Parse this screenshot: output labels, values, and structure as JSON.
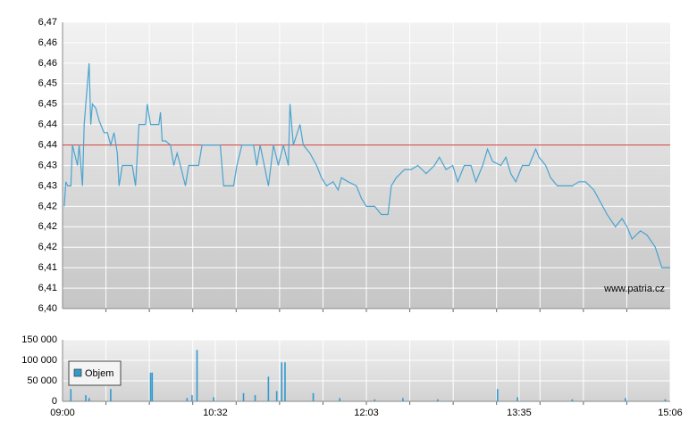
{
  "chart_data": [
    {
      "type": "line",
      "annotation": "www.patria.cz",
      "xlim": [
        "09:00",
        "15:06"
      ],
      "ylim": [
        6.4,
        6.47
      ],
      "yticks": [
        {
          "value": 6.4,
          "label": "6,40"
        },
        {
          "value": 6.405,
          "label": "6,41"
        },
        {
          "value": 6.41,
          "label": "6,41"
        },
        {
          "value": 6.415,
          "label": "6,42"
        },
        {
          "value": 6.42,
          "label": "6,42"
        },
        {
          "value": 6.425,
          "label": "6,42"
        },
        {
          "value": 6.43,
          "label": "6,43"
        },
        {
          "value": 6.435,
          "label": "6,43"
        },
        {
          "value": 6.44,
          "label": "6,44"
        },
        {
          "value": 6.445,
          "label": "6,44"
        },
        {
          "value": 6.45,
          "label": "6,45"
        },
        {
          "value": 6.455,
          "label": "6,45"
        },
        {
          "value": 6.46,
          "label": "6,46"
        },
        {
          "value": 6.465,
          "label": "6,46"
        },
        {
          "value": 6.47,
          "label": "6,47"
        }
      ],
      "grid": true,
      "hline": {
        "value": 6.44,
        "color": "#d03a3a"
      },
      "color": "#4aa3d0",
      "x": [
        "09:01",
        "09:02",
        "09:03",
        "09:05",
        "09:06",
        "09:09",
        "09:10",
        "09:12",
        "09:13",
        "09:16",
        "09:17",
        "09:18",
        "09:20",
        "09:22",
        "09:23",
        "09:25",
        "09:27",
        "09:29",
        "09:31",
        "09:33",
        "09:34",
        "09:36",
        "09:38",
        "09:42",
        "09:44",
        "09:46",
        "09:50",
        "09:51",
        "09:53",
        "09:58",
        "09:59",
        "10:00",
        "10:02",
        "10:05",
        "10:07",
        "10:09",
        "10:11",
        "10:14",
        "10:16",
        "10:22",
        "10:24",
        "10:35",
        "10:37",
        "10:43",
        "10:45",
        "10:48",
        "10:55",
        "10:57",
        "10:59",
        "11:04",
        "11:07",
        "11:10",
        "11:13",
        "11:16",
        "11:17",
        "11:19",
        "11:23",
        "11:25",
        "11:29",
        "11:33",
        "11:36",
        "11:39",
        "11:43",
        "11:46",
        "11:48",
        "11:52",
        "11:57",
        "12:00",
        "12:03",
        "12:08",
        "12:12",
        "12:16",
        "12:18",
        "12:21",
        "12:26",
        "12:30",
        "12:34",
        "12:39",
        "12:44",
        "12:47",
        "12:51",
        "12:55",
        "12:58",
        "13:02",
        "13:06",
        "13:09",
        "13:13",
        "13:16",
        "13:19",
        "13:24",
        "13:27",
        "13:30",
        "13:33",
        "13:37",
        "13:41",
        "13:45",
        "13:47",
        "13:51",
        "13:54",
        "13:58",
        "14:07",
        "14:11",
        "14:15",
        "14:20",
        "14:24",
        "14:28",
        "14:33",
        "14:37",
        "14:40",
        "14:43",
        "14:48",
        "14:52",
        "14:57",
        "15:01",
        "15:06"
      ],
      "values": [
        6.425,
        6.431,
        6.43,
        6.43,
        6.44,
        6.435,
        6.44,
        6.43,
        6.445,
        6.46,
        6.445,
        6.45,
        6.449,
        6.446,
        6.445,
        6.443,
        6.443,
        6.44,
        6.443,
        6.438,
        6.43,
        6.435,
        6.435,
        6.435,
        6.43,
        6.445,
        6.445,
        6.45,
        6.445,
        6.445,
        6.448,
        6.441,
        6.441,
        6.44,
        6.435,
        6.438,
        6.435,
        6.43,
        6.435,
        6.435,
        6.44,
        6.44,
        6.43,
        6.43,
        6.435,
        6.44,
        6.44,
        6.435,
        6.44,
        6.43,
        6.44,
        6.435,
        6.44,
        6.435,
        6.45,
        6.44,
        6.445,
        6.44,
        6.438,
        6.435,
        6.432,
        6.43,
        6.431,
        6.429,
        6.432,
        6.431,
        6.43,
        6.427,
        6.425,
        6.425,
        6.423,
        6.423,
        6.43,
        6.432,
        6.434,
        6.434,
        6.435,
        6.433,
        6.435,
        6.437,
        6.434,
        6.435,
        6.431,
        6.435,
        6.435,
        6.431,
        6.435,
        6.439,
        6.436,
        6.435,
        6.437,
        6.433,
        6.431,
        6.435,
        6.435,
        6.439,
        6.437,
        6.435,
        6.432,
        6.43,
        6.43,
        6.431,
        6.431,
        6.429,
        6.426,
        6.423,
        6.42,
        6.422,
        6.42,
        6.417,
        6.419,
        6.418,
        6.415,
        6.41,
        6.41
      ]
    },
    {
      "type": "bar",
      "xlim": [
        "09:00",
        "15:06"
      ],
      "xticks": [
        "09:00",
        "10:32",
        "12:03",
        "13:35",
        "15:06"
      ],
      "ylim": [
        0,
        150000
      ],
      "yticks": [
        0,
        {
          "value": 50000,
          "label": "50 000"
        },
        {
          "value": 100000,
          "label": "100 000"
        },
        {
          "value": 150000,
          "label": "150 000"
        }
      ],
      "grid": true,
      "legend": "upper left",
      "x": [
        "09:05",
        "09:14",
        "09:16",
        "09:29",
        "09:53",
        "09:54",
        "10:15",
        "10:18",
        "10:21",
        "10:31",
        "10:49",
        "10:56",
        "11:04",
        "11:09",
        "11:12",
        "11:14",
        "11:31",
        "11:47",
        "12:08",
        "12:25",
        "12:46",
        "13:22",
        "13:34",
        "14:07",
        "14:39",
        "15:03"
      ],
      "series": [
        {
          "name": "Objem",
          "color": "#3399cc",
          "values": [
            30000,
            15000,
            8000,
            30000,
            70000,
            70000,
            8000,
            15000,
            125000,
            10000,
            20000,
            15000,
            60000,
            25000,
            95000,
            95000,
            20000,
            8000,
            5000,
            8000,
            5000,
            30000,
            10000,
            5000,
            8000,
            5000
          ]
        }
      ]
    }
  ]
}
